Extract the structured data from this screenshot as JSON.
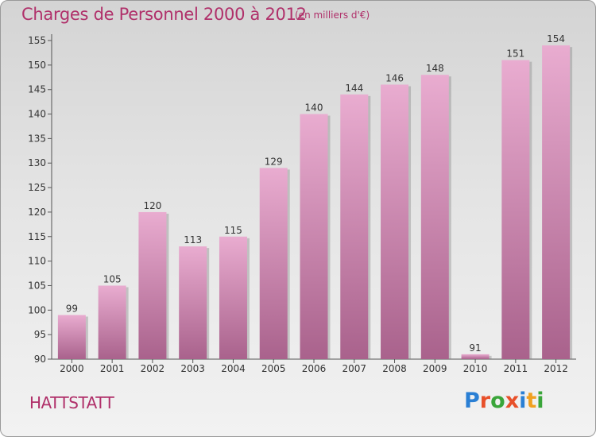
{
  "header": {
    "title": "Charges de Personnel 2000 à 2012",
    "unit": "(en milliers d'€)"
  },
  "footer": {
    "place": "HATTSTATT",
    "logo": "Proxiti",
    "logo_colors": [
      "#2a7fd4",
      "#e8502a",
      "#3aa53a",
      "#e8502a",
      "#2a7fd4",
      "#f0a020",
      "#3aa53a"
    ]
  },
  "colors": {
    "title": "#b0306a",
    "bar_top": "#e9acd0",
    "bar_bottom": "#a9628c"
  },
  "chart_data": {
    "type": "bar",
    "title": "Charges de Personnel 2000 à 2012",
    "subtitle": "(en milliers d'€)",
    "categories": [
      "2000",
      "2001",
      "2002",
      "2003",
      "2004",
      "2005",
      "2006",
      "2007",
      "2008",
      "2009",
      "2010",
      "2011",
      "2012"
    ],
    "values": [
      99,
      105,
      120,
      113,
      115,
      129,
      140,
      144,
      146,
      148,
      91,
      151,
      154
    ],
    "ylim": [
      90,
      155
    ],
    "yticks": [
      90,
      95,
      100,
      105,
      110,
      115,
      120,
      125,
      130,
      135,
      140,
      145,
      150,
      155
    ],
    "grid": false,
    "legend": "none"
  }
}
